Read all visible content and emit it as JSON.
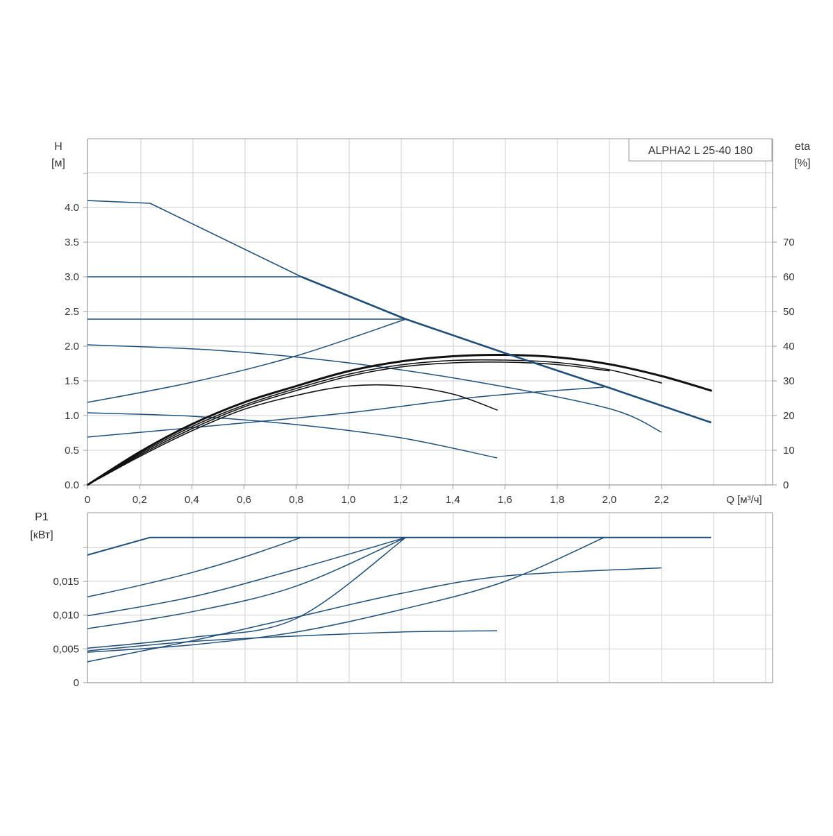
{
  "chart_data": [
    {
      "type": "line",
      "panel": "head",
      "y_label": "H",
      "y_unit": "[м]",
      "y2_label": "eta",
      "y2_unit": "[%]",
      "x_label": "Q [м³/ч]",
      "legend": "ALPHA2 L 25-40 180",
      "legend_position": "top-right",
      "grid": true,
      "xlim": [
        0,
        2.6
      ],
      "ylim": [
        0,
        5.0
      ],
      "y2lim": [
        0,
        100
      ],
      "x_ticks": [
        "0",
        "0,2",
        "0,4",
        "0,6",
        "0,8",
        "1,0",
        "1,2",
        "1,4",
        "1,6",
        "1,8",
        "2,0",
        "2,2"
      ],
      "x_tick_values": [
        0,
        0.2,
        0.4,
        0.6,
        0.8,
        1.0,
        1.2,
        1.4,
        1.6,
        1.8,
        2.0,
        2.2
      ],
      "y_ticks": [
        "0.0",
        "0.5",
        "1.0",
        "1.5",
        "2.0",
        "2.5",
        "3.0",
        "3.5",
        "4.0"
      ],
      "y_tick_values": [
        0,
        0.5,
        1.0,
        1.5,
        2.0,
        2.5,
        3.0,
        3.5,
        4.0
      ],
      "y2_ticks": [
        "0",
        "10",
        "20",
        "30",
        "40",
        "50",
        "60",
        "70"
      ],
      "y2_tick_values": [
        0,
        10,
        20,
        30,
        40,
        50,
        60,
        70
      ],
      "colors": {
        "head": "#1f4e79",
        "eta": "#111111",
        "grid": "#cfcfcf",
        "frame": "#9a9a9a"
      },
      "series": [
        {
          "kind": "head",
          "points": [
            [
              0,
              4.1
            ],
            [
              0.24,
              4.06
            ],
            [
              0.82,
              3.0
            ],
            [
              1.22,
              2.39
            ],
            [
              1.6,
              1.9
            ],
            [
              2.0,
              1.4
            ],
            [
              2.39,
              0.9
            ]
          ]
        },
        {
          "kind": "head",
          "points": [
            [
              0,
              3.0
            ],
            [
              0.82,
              3.0
            ]
          ]
        },
        {
          "kind": "head",
          "points": [
            [
              0,
              2.39
            ],
            [
              1.22,
              2.39
            ]
          ]
        },
        {
          "kind": "head",
          "points": [
            [
              0,
              1.19
            ],
            [
              0.4,
              1.48
            ],
            [
              0.8,
              1.86
            ],
            [
              1.22,
              2.39
            ]
          ]
        },
        {
          "kind": "head",
          "points": [
            [
              0,
              2.02
            ],
            [
              0.5,
              1.94
            ],
            [
              1.0,
              1.76
            ],
            [
              1.5,
              1.48
            ],
            [
              2.0,
              1.1
            ],
            [
              2.2,
              0.76
            ]
          ]
        },
        {
          "kind": "head",
          "points": [
            [
              0,
              1.04
            ],
            [
              0.4,
              0.99
            ],
            [
              0.8,
              0.87
            ],
            [
              1.2,
              0.68
            ],
            [
              1.57,
              0.39
            ]
          ]
        },
        {
          "kind": "head",
          "points": [
            [
              0,
              0.69
            ],
            [
              0.5,
              0.86
            ],
            [
              1.0,
              1.04
            ],
            [
              1.5,
              1.27
            ],
            [
              1.98,
              1.41
            ]
          ]
        },
        {
          "kind": "eta",
          "stroke": 3,
          "points": [
            [
              0,
              0
            ],
            [
              0.2,
              9.5
            ],
            [
              0.4,
              17.5
            ],
            [
              0.6,
              23.8
            ],
            [
              0.8,
              28.5
            ],
            [
              1.0,
              32.8
            ],
            [
              1.2,
              35.6
            ],
            [
              1.4,
              37.1
            ],
            [
              1.6,
              37.5
            ],
            [
              1.8,
              36.8
            ],
            [
              2.0,
              34.8
            ],
            [
              2.2,
              31.4
            ],
            [
              2.39,
              27.2
            ]
          ]
        },
        {
          "kind": "eta",
          "stroke": 1.6,
          "points": [
            [
              0,
              0
            ],
            [
              0.2,
              9.0
            ],
            [
              0.4,
              16.8
            ],
            [
              0.6,
              23.0
            ],
            [
              0.8,
              27.8
            ],
            [
              1.0,
              31.9
            ],
            [
              1.2,
              34.6
            ],
            [
              1.4,
              35.9
            ],
            [
              1.6,
              36.0
            ],
            [
              1.8,
              35.3
            ],
            [
              2.0,
              33.2
            ],
            [
              2.2,
              29.4
            ]
          ]
        },
        {
          "kind": "eta",
          "stroke": 1.6,
          "points": [
            [
              0,
              0
            ],
            [
              0.2,
              8.6
            ],
            [
              0.4,
              16.2
            ],
            [
              0.6,
              22.5
            ],
            [
              0.8,
              27.2
            ],
            [
              1.0,
              31.3
            ],
            [
              1.2,
              34.0
            ],
            [
              1.4,
              35.2
            ],
            [
              1.6,
              35.4
            ],
            [
              1.8,
              34.7
            ],
            [
              2.0,
              32.9
            ]
          ]
        },
        {
          "kind": "eta",
          "stroke": 1.6,
          "points": [
            [
              0,
              0
            ],
            [
              0.2,
              8.2
            ],
            [
              0.4,
              15.6
            ],
            [
              0.6,
              21.8
            ],
            [
              0.8,
              25.8
            ],
            [
              1.0,
              28.5
            ],
            [
              1.2,
              28.6
            ],
            [
              1.4,
              26.2
            ],
            [
              1.57,
              21.6
            ]
          ]
        }
      ]
    },
    {
      "type": "line",
      "panel": "power",
      "y_label": "P1",
      "y_unit": "[кВт]",
      "grid": true,
      "xlim": [
        0,
        2.6
      ],
      "ylim": [
        0,
        0.021
      ],
      "y_ticks": [
        "0",
        "0,005",
        "0,010",
        "0,015"
      ],
      "y_tick_values": [
        0,
        0.005,
        0.01,
        0.015
      ],
      "colors": {
        "power": "#1f4e79"
      },
      "series": [
        {
          "kind": "power",
          "points": [
            [
              0,
              0.0189
            ],
            [
              0.24,
              0.0215
            ],
            [
              2.39,
              0.0215
            ]
          ]
        },
        {
          "kind": "power",
          "points": [
            [
              0,
              0.0127
            ],
            [
              0.2,
              0.0144
            ],
            [
              0.4,
              0.0163
            ],
            [
              0.6,
              0.0186
            ],
            [
              0.82,
              0.0215
            ]
          ]
        },
        {
          "kind": "power",
          "points": [
            [
              0,
              0.0099
            ],
            [
              0.4,
              0.0127
            ],
            [
              0.8,
              0.0168
            ],
            [
              1.22,
              0.0215
            ]
          ]
        },
        {
          "kind": "power",
          "points": [
            [
              0,
              0.008
            ],
            [
              0.4,
              0.0105
            ],
            [
              0.8,
              0.0143
            ],
            [
              1.22,
              0.0215
            ]
          ]
        },
        {
          "kind": "power",
          "points": [
            [
              0,
              0.0051
            ],
            [
              0.4,
              0.0067
            ],
            [
              0.8,
              0.0095
            ],
            [
              1.22,
              0.0215
            ]
          ]
        },
        {
          "kind": "power",
          "points": [
            [
              0,
              0.0045
            ],
            [
              0.4,
              0.0056
            ],
            [
              0.8,
              0.0075
            ],
            [
              1.2,
              0.0108
            ],
            [
              1.6,
              0.015
            ],
            [
              1.98,
              0.0215
            ]
          ]
        },
        {
          "kind": "power",
          "points": [
            [
              0,
              0.0031
            ],
            [
              0.4,
              0.0062
            ],
            [
              0.8,
              0.0097
            ],
            [
              1.2,
              0.0132
            ],
            [
              1.6,
              0.0158
            ],
            [
              2.2,
              0.017
            ]
          ]
        },
        {
          "kind": "power",
          "points": [
            [
              0,
              0.0047
            ],
            [
              0.4,
              0.0061
            ],
            [
              0.8,
              0.0069
            ],
            [
              1.2,
              0.0075
            ],
            [
              1.57,
              0.0077
            ]
          ]
        }
      ]
    }
  ]
}
